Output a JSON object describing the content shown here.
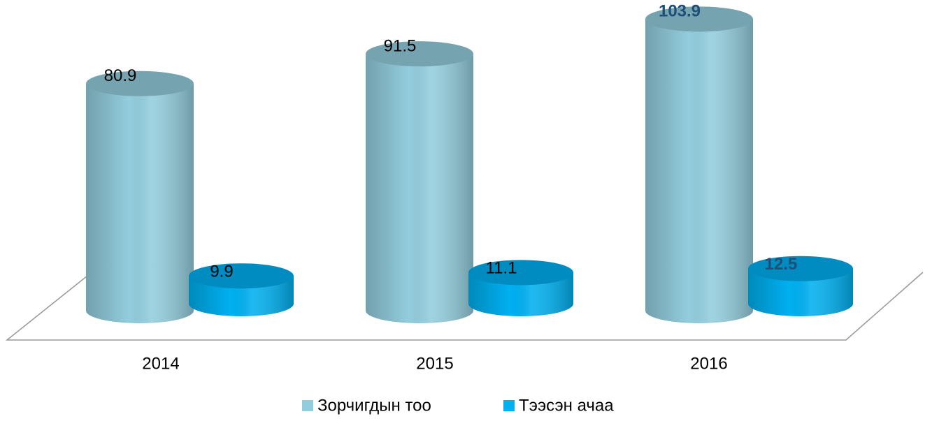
{
  "chart_data": {
    "type": "bar3d-cylinder",
    "categories": [
      "2014",
      "2015",
      "2016"
    ],
    "series": [
      {
        "name": "Зорчигдын тоо",
        "color": "#93cddd",
        "values": [
          80.9,
          91.5,
          103.9
        ]
      },
      {
        "name": "Тээсэн ачаа",
        "color": "#00b0f0",
        "values": [
          9.9,
          11.1,
          12.5
        ]
      }
    ]
  }
}
